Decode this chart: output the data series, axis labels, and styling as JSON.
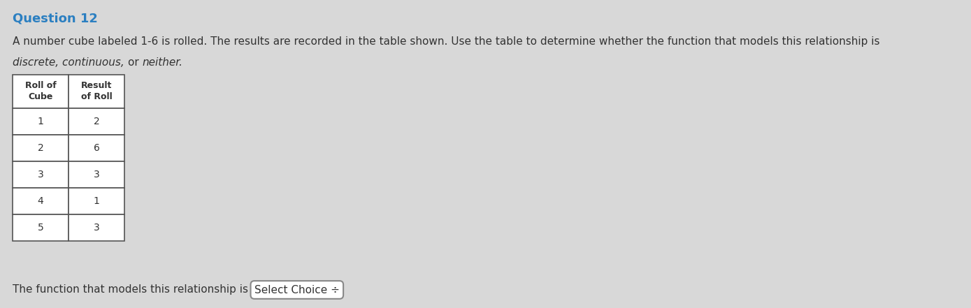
{
  "title": "Question 12",
  "title_color": "#2b7fc1",
  "title_fontsize": 13,
  "body_line1": "A number cube labeled 1-6 is rolled. The results are recorded in the table shown. Use the table to determine whether the function that models this relationship is",
  "body_line2_parts": [
    {
      "text": "discrete, ",
      "italic": true
    },
    {
      "text": "continuous, ",
      "italic": true
    },
    {
      "text": "or ",
      "italic": false
    },
    {
      "text": "neither.",
      "italic": true
    }
  ],
  "body_fontsize": 11.0,
  "table_header_col1_line1": "Roll of",
  "table_header_col1_line2": "Cube",
  "table_header_col2_line1": "Result",
  "table_header_col2_line2": "of Roll",
  "table_data": [
    [
      "1",
      "2"
    ],
    [
      "2",
      "6"
    ],
    [
      "3",
      "3"
    ],
    [
      "4",
      "1"
    ],
    [
      "5",
      "3"
    ]
  ],
  "footer_normal": "The function that models this relationship is ",
  "footer_box": "Select Choice ÷",
  "footer_fontsize": 11.0,
  "bg_color": "#d8d8d8",
  "text_color": "#333333",
  "table_border_color": "#555555",
  "table_bg": "#ffffff"
}
